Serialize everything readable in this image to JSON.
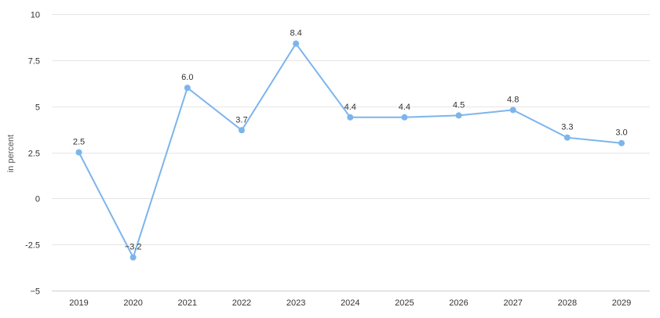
{
  "chart_data": {
    "type": "line",
    "title": "",
    "xlabel": "",
    "ylabel": "in percent",
    "ylim": [
      -5,
      10
    ],
    "y_ticks": [
      10,
      7.5,
      5,
      2.5,
      0,
      -2.5,
      -5
    ],
    "y_tick_labels": [
      "10",
      "7.5",
      "5",
      "2.5",
      "0",
      "-2.5",
      "−5"
    ],
    "categories": [
      "2019",
      "2020",
      "2021",
      "2022",
      "2023",
      "2024",
      "2025",
      "2026",
      "2027",
      "2028",
      "2029"
    ],
    "series": [
      {
        "values": [
          2.5,
          -3.2,
          6.0,
          3.7,
          8.4,
          4.4,
          4.4,
          4.5,
          4.8,
          3.3,
          3.0
        ],
        "labels": [
          "2.5",
          "−3.2",
          "6.0",
          "3.7",
          "8.4",
          "4.4",
          "4.4",
          "4.5",
          "4.8",
          "3.3",
          "3.0"
        ],
        "color": "#7cb5ec"
      }
    ],
    "grid": true,
    "legend": "none"
  }
}
